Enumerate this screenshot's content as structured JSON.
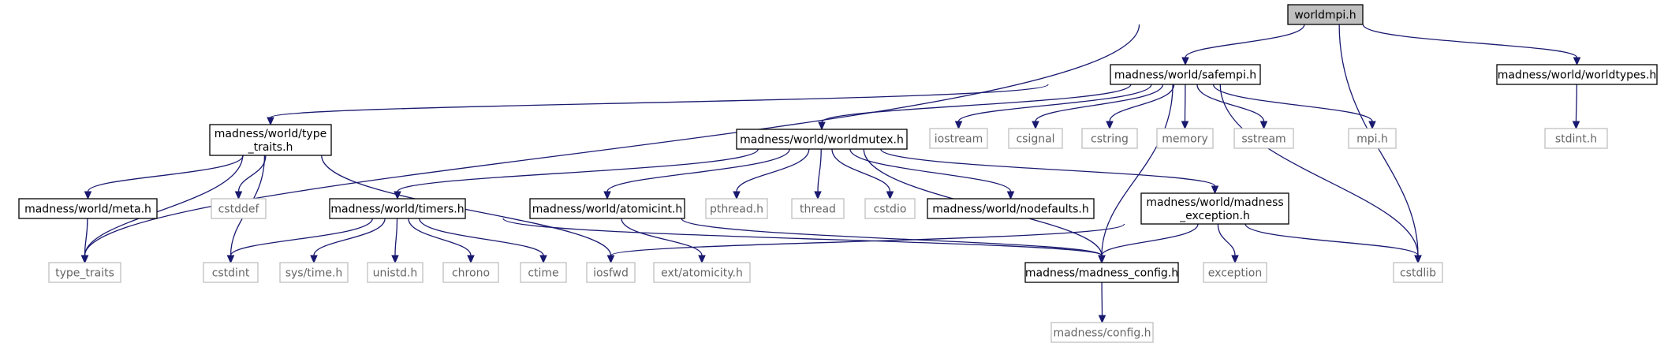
{
  "graph": {
    "nodes": [
      {
        "id": "worldmpi",
        "label": "worldmpi.h",
        "style": "root"
      },
      {
        "id": "safempi",
        "label": "madness/world/safempi.h",
        "style": "normal"
      },
      {
        "id": "worldtypes",
        "label": "madness/world/worldtypes.h",
        "style": "normal"
      },
      {
        "id": "type_traits_w",
        "label": "madness/world/type\n_traits.h",
        "style": "normal"
      },
      {
        "id": "worldmutex",
        "label": "madness/world/worldmutex.h",
        "style": "normal"
      },
      {
        "id": "iostream",
        "label": "iostream",
        "style": "external"
      },
      {
        "id": "csignal",
        "label": "csignal",
        "style": "external"
      },
      {
        "id": "cstring",
        "label": "cstring",
        "style": "external"
      },
      {
        "id": "memory",
        "label": "memory",
        "style": "external"
      },
      {
        "id": "sstream",
        "label": "sstream",
        "style": "external"
      },
      {
        "id": "mpi",
        "label": "mpi.h",
        "style": "external"
      },
      {
        "id": "stdint",
        "label": "stdint.h",
        "style": "external"
      },
      {
        "id": "meta",
        "label": "madness/world/meta.h",
        "style": "normal"
      },
      {
        "id": "cstddef",
        "label": "cstddef",
        "style": "external"
      },
      {
        "id": "timers",
        "label": "madness/world/timers.h",
        "style": "normal"
      },
      {
        "id": "atomicint",
        "label": "madness/world/atomicint.h",
        "style": "normal"
      },
      {
        "id": "pthread",
        "label": "pthread.h",
        "style": "external"
      },
      {
        "id": "thread",
        "label": "thread",
        "style": "external"
      },
      {
        "id": "cstdio",
        "label": "cstdio",
        "style": "external"
      },
      {
        "id": "nodefaults",
        "label": "madness/world/nodefaults.h",
        "style": "normal"
      },
      {
        "id": "madness_exc",
        "label": "madness/world/madness\n_exception.h",
        "style": "normal"
      },
      {
        "id": "type_traits",
        "label": "type_traits",
        "style": "external"
      },
      {
        "id": "cstdint",
        "label": "cstdint",
        "style": "external"
      },
      {
        "id": "systime",
        "label": "sys/time.h",
        "style": "external"
      },
      {
        "id": "unistd",
        "label": "unistd.h",
        "style": "external"
      },
      {
        "id": "chrono",
        "label": "chrono",
        "style": "external"
      },
      {
        "id": "ctime",
        "label": "ctime",
        "style": "external"
      },
      {
        "id": "iosfwd",
        "label": "iosfwd",
        "style": "external"
      },
      {
        "id": "atomicity",
        "label": "ext/atomicity.h",
        "style": "external"
      },
      {
        "id": "madness_config",
        "label": "madness/madness_config.h",
        "style": "normal"
      },
      {
        "id": "exception",
        "label": "exception",
        "style": "external"
      },
      {
        "id": "cstdlib",
        "label": "cstdlib",
        "style": "external"
      },
      {
        "id": "config",
        "label": "madness/config.h",
        "style": "external"
      }
    ],
    "edges": [
      [
        "worldmpi",
        "safempi"
      ],
      [
        "worldmpi",
        "worldtypes"
      ],
      [
        "worldmpi",
        "type_traits"
      ],
      [
        "worldmpi",
        "cstdlib"
      ],
      [
        "safempi",
        "type_traits_w"
      ],
      [
        "safempi",
        "worldmutex"
      ],
      [
        "safempi",
        "iostream"
      ],
      [
        "safempi",
        "csignal"
      ],
      [
        "safempi",
        "cstring"
      ],
      [
        "safempi",
        "memory"
      ],
      [
        "safempi",
        "sstream"
      ],
      [
        "safempi",
        "mpi"
      ],
      [
        "safempi",
        "madness_config"
      ],
      [
        "safempi",
        "cstdlib"
      ],
      [
        "worldtypes",
        "stdint"
      ],
      [
        "type_traits_w",
        "meta"
      ],
      [
        "type_traits_w",
        "type_traits"
      ],
      [
        "type_traits_w",
        "cstddef"
      ],
      [
        "type_traits_w",
        "cstdint"
      ],
      [
        "type_traits_w",
        "iosfwd"
      ],
      [
        "meta",
        "type_traits"
      ],
      [
        "worldmutex",
        "timers"
      ],
      [
        "worldmutex",
        "atomicint"
      ],
      [
        "worldmutex",
        "pthread"
      ],
      [
        "worldmutex",
        "thread"
      ],
      [
        "worldmutex",
        "cstdio"
      ],
      [
        "worldmutex",
        "nodefaults"
      ],
      [
        "worldmutex",
        "madness_exc"
      ],
      [
        "worldmutex",
        "madness_config"
      ],
      [
        "timers",
        "cstdint"
      ],
      [
        "timers",
        "systime"
      ],
      [
        "timers",
        "unistd"
      ],
      [
        "timers",
        "chrono"
      ],
      [
        "timers",
        "ctime"
      ],
      [
        "timers",
        "madness_config"
      ],
      [
        "atomicint",
        "atomicity"
      ],
      [
        "atomicint",
        "madness_config"
      ],
      [
        "madness_exc",
        "iosfwd"
      ],
      [
        "madness_exc",
        "madness_config"
      ],
      [
        "madness_exc",
        "exception"
      ],
      [
        "madness_exc",
        "cstdlib"
      ],
      [
        "madness_config",
        "config"
      ]
    ]
  },
  "colors": {
    "edge": "#191970",
    "root_fill": "#bfbfbf",
    "normal_border": "#000000",
    "external_border": "#bfbfbf",
    "external_text": "#666666"
  }
}
